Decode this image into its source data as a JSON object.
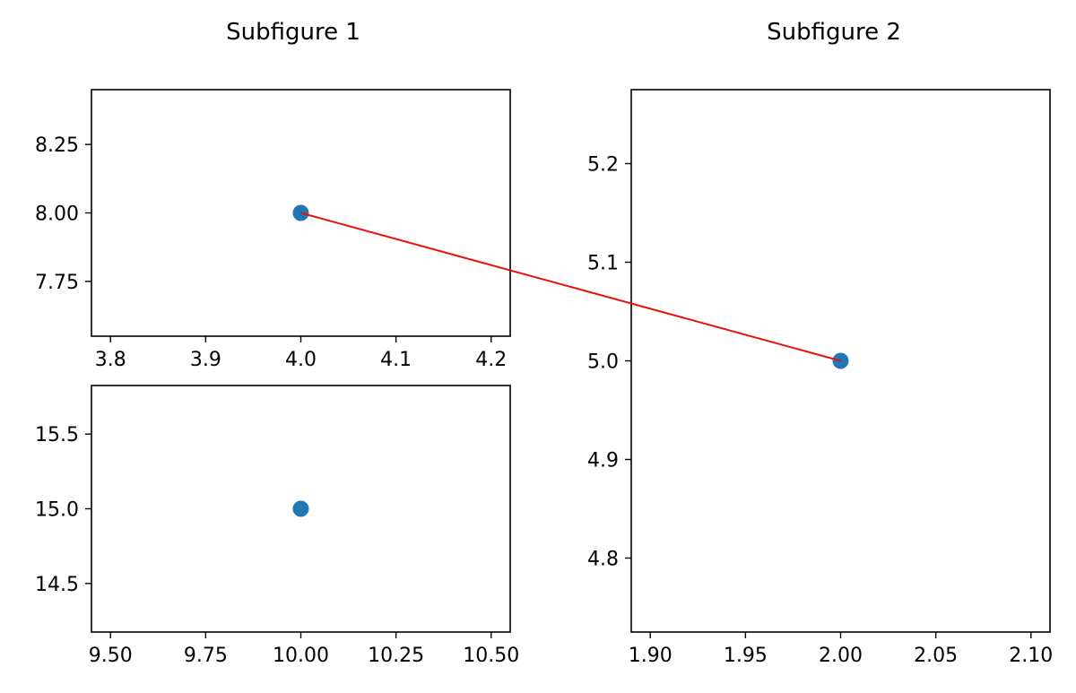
{
  "colors": {
    "marker": "#1f77b4",
    "connector": "#e8120c",
    "axes": "#000000",
    "background": "#ffffff"
  },
  "subfigures": [
    {
      "title": "Subfigure 1"
    },
    {
      "title": "Subfigure 2"
    }
  ],
  "connector": {
    "from": {
      "chart": "subfigure-1-top",
      "point": [
        4.0,
        8.0
      ]
    },
    "to": {
      "chart": "subfigure-2",
      "point": [
        2.0,
        5.0
      ]
    }
  },
  "chart_data": [
    {
      "id": "subfigure-1-top",
      "type": "scatter",
      "x": [
        4.0
      ],
      "y": [
        8.0
      ],
      "xlim": [
        3.78,
        4.22
      ],
      "ylim": [
        7.55,
        8.45
      ],
      "xticks": [
        "3.8",
        "3.9",
        "4.0",
        "4.1",
        "4.2"
      ],
      "yticks": [
        "7.75",
        "8.00",
        "8.25"
      ],
      "grid": false
    },
    {
      "id": "subfigure-1-bottom",
      "type": "scatter",
      "x": [
        10.0
      ],
      "y": [
        15.0
      ],
      "xlim": [
        9.45,
        10.55
      ],
      "ylim": [
        14.175,
        15.825
      ],
      "xticks": [
        "9.50",
        "9.75",
        "10.00",
        "10.25",
        "10.50"
      ],
      "yticks": [
        "14.5",
        "15.0",
        "15.5"
      ],
      "grid": false
    },
    {
      "id": "subfigure-2",
      "type": "scatter",
      "x": [
        2.0
      ],
      "y": [
        5.0
      ],
      "xlim": [
        1.89,
        2.11
      ],
      "ylim": [
        4.725,
        5.275
      ],
      "xticks": [
        "1.90",
        "1.95",
        "2.00",
        "2.05",
        "2.10"
      ],
      "yticks": [
        "4.8",
        "4.9",
        "5.0",
        "5.1",
        "5.2"
      ],
      "grid": false
    }
  ]
}
